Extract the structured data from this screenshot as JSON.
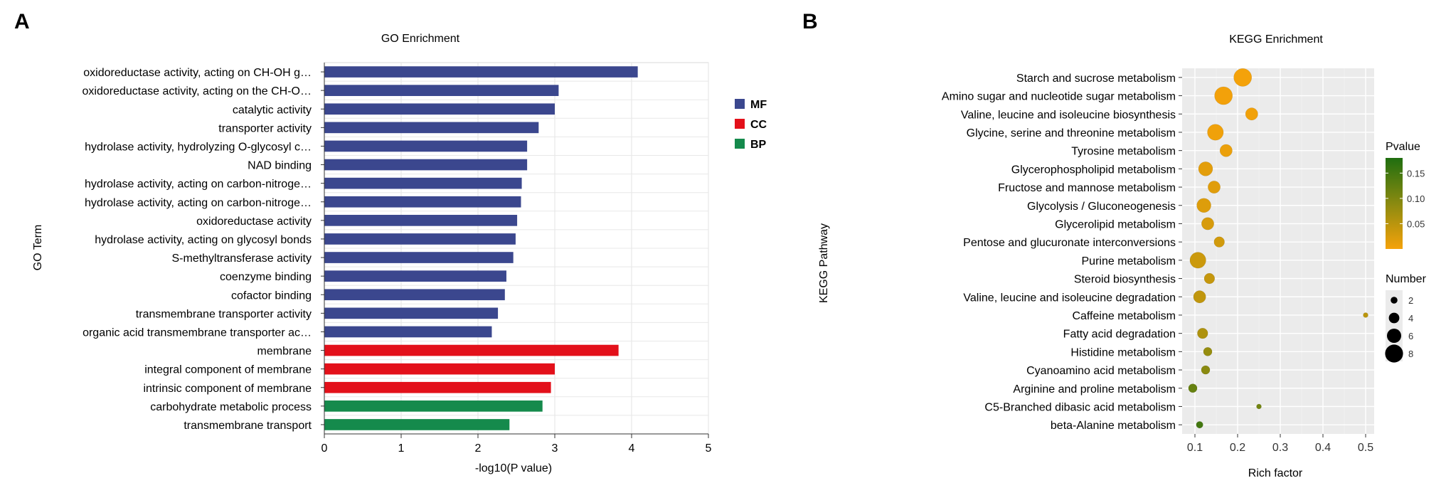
{
  "chart_data": [
    {
      "panel": "A",
      "type": "bar",
      "orientation": "horizontal",
      "title": "GO Enrichment",
      "xlabel": "-log10(P value)",
      "ylabel": "GO Term",
      "xlim": [
        0,
        5
      ],
      "xticks": [
        "0",
        "1",
        "2",
        "3",
        "4",
        "5"
      ],
      "grid": true,
      "legend_position": "right",
      "legend": [
        {
          "name": "MF",
          "color": "#3b478e"
        },
        {
          "name": "CC",
          "color": "#e3101a"
        },
        {
          "name": "BP",
          "color": "#158a4c"
        }
      ],
      "categories": [
        "oxidoreductase activity, acting on CH-OH g…",
        "oxidoreductase activity, acting on the CH-O…",
        "catalytic activity",
        "transporter activity",
        "hydrolase activity, hydrolyzing O-glycosyl c…",
        "NAD binding",
        "hydrolase activity, acting on carbon-nitroge…",
        "hydrolase activity, acting on carbon-nitroge…",
        "oxidoreductase activity",
        "hydrolase activity, acting on glycosyl bonds",
        "S-methyltransferase activity",
        "coenzyme binding",
        "cofactor binding",
        "transmembrane transporter activity",
        "organic acid transmembrane transporter ac…",
        "membrane",
        "integral component of membrane",
        "intrinsic component of membrane",
        "carbohydrate metabolic process",
        "transmembrane transport"
      ],
      "values": [
        4.08,
        3.05,
        3.0,
        2.79,
        2.64,
        2.64,
        2.57,
        2.56,
        2.51,
        2.49,
        2.46,
        2.37,
        2.35,
        2.26,
        2.18,
        3.83,
        3.0,
        2.95,
        2.84,
        2.41
      ],
      "groups": [
        "MF",
        "MF",
        "MF",
        "MF",
        "MF",
        "MF",
        "MF",
        "MF",
        "MF",
        "MF",
        "MF",
        "MF",
        "MF",
        "MF",
        "MF",
        "CC",
        "CC",
        "CC",
        "BP",
        "BP"
      ]
    },
    {
      "panel": "B",
      "type": "scatter",
      "title": "KEGG Enrichment",
      "xlabel": "Rich factor",
      "ylabel": "KEGG Pathway",
      "xlim": [
        0.07,
        0.52
      ],
      "xticks": [
        "0.1",
        "0.2",
        "0.3",
        "0.4",
        "0.5"
      ],
      "grid": true,
      "legend_position": "right",
      "color_legend": {
        "title": "Pvalue",
        "ticks": [
          "0.15",
          "0.10",
          "0.05"
        ],
        "low_color": "#f5a20a",
        "high_color": "#1f6e10"
      },
      "size_legend": {
        "title": "Number",
        "labels": [
          "2",
          "4",
          "6",
          "8"
        ]
      },
      "categories": [
        "Starch and sucrose metabolism",
        "Amino sugar and nucleotide sugar metabolism",
        "Valine, leucine and isoleucine biosynthesis",
        "Glycine, serine and threonine metabolism",
        "Tyrosine metabolism",
        "Glycerophospholipid metabolism",
        "Fructose and mannose metabolism",
        "Glycolysis / Gluconeogenesis",
        "Glycerolipid metabolism",
        "Pentose and glucuronate interconversions",
        "Purine metabolism",
        "Steroid biosynthesis",
        "Valine, leucine and isoleucine degradation",
        "Caffeine metabolism",
        "Fatty acid degradation",
        "Histidine metabolism",
        "Cyanoamino acid metabolism",
        "Arginine and proline metabolism",
        "C5-Branched dibasic acid metabolism",
        "beta-Alanine metabolism"
      ],
      "rich_factor": [
        0.212,
        0.167,
        0.233,
        0.148,
        0.173,
        0.125,
        0.145,
        0.121,
        0.13,
        0.157,
        0.107,
        0.134,
        0.111,
        0.5,
        0.118,
        0.13,
        0.125,
        0.095,
        0.25,
        0.111
      ],
      "number": [
        8,
        8,
        5,
        7,
        5,
        6,
        5,
        6,
        5,
        4,
        7,
        4,
        5,
        1,
        4,
        3,
        3,
        3,
        1,
        2
      ],
      "pvalue": [
        0.001,
        0.002,
        0.003,
        0.004,
        0.008,
        0.015,
        0.018,
        0.02,
        0.025,
        0.03,
        0.035,
        0.04,
        0.045,
        0.05,
        0.06,
        0.08,
        0.09,
        0.12,
        0.11,
        0.15
      ]
    }
  ],
  "panel_labels": [
    "A",
    "B"
  ]
}
